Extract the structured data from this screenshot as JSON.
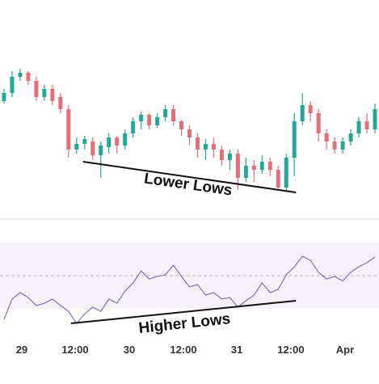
{
  "chart_data": [
    {
      "type": "candlestick",
      "up_color": "#26a69a",
      "down_color": "#e0707a",
      "xlim": [
        -0.5,
        46.5
      ],
      "ylim": [
        0,
        270
      ],
      "series": [
        {
          "open": [
            145,
            155,
            175,
            180,
            170,
            150,
            160,
            150,
            135,
            85,
            92,
            95,
            78,
            88,
            100,
            90,
            105,
            120,
            128,
            115,
            125,
            135,
            120,
            110,
            100,
            85,
            92,
            85,
            72,
            80,
            50,
            65,
            60,
            70,
            60,
            38,
            75,
            120,
            140,
            130,
            105,
            95,
            85,
            95,
            105,
            120,
            110
          ],
          "high": [
            160,
            182,
            185,
            182,
            175,
            165,
            165,
            155,
            140,
            100,
            102,
            100,
            95,
            105,
            102,
            110,
            125,
            132,
            130,
            130,
            140,
            140,
            122,
            115,
            105,
            98,
            100,
            90,
            85,
            85,
            75,
            72,
            78,
            75,
            65,
            80,
            130,
            155,
            145,
            135,
            110,
            100,
            100,
            110,
            125,
            130,
            142
          ],
          "low": [
            142,
            150,
            170,
            165,
            145,
            145,
            140,
            130,
            75,
            80,
            85,
            72,
            50,
            80,
            80,
            85,
            100,
            110,
            110,
            112,
            120,
            115,
            102,
            90,
            75,
            72,
            75,
            65,
            60,
            35,
            45,
            45,
            55,
            52,
            34,
            34,
            52,
            115,
            120,
            95,
            85,
            80,
            80,
            90,
            100,
            105,
            105
          ],
          "close": [
            155,
            175,
            180,
            170,
            150,
            160,
            145,
            135,
            85,
            92,
            98,
            78,
            90,
            100,
            90,
            105,
            120,
            128,
            115,
            125,
            135,
            120,
            110,
            100,
            85,
            92,
            85,
            72,
            80,
            50,
            65,
            60,
            70,
            60,
            38,
            75,
            120,
            140,
            130,
            105,
            95,
            85,
            95,
            105,
            120,
            110,
            135
          ]
        }
      ],
      "annotations": [
        {
          "text": "Lower Lows",
          "from": {
            "x": 9.8,
            "y": 70
          },
          "to": {
            "x": 36.2,
            "y": 32
          }
        }
      ]
    },
    {
      "type": "line",
      "color": "#7e72b5",
      "band": [
        30,
        70
      ],
      "band_color": "#f6f0fb",
      "midline": 50,
      "xlim": [
        -0.5,
        46.5
      ],
      "ylim": [
        0,
        100
      ],
      "xticks": [
        {
          "value": 2.2,
          "label": "29"
        },
        {
          "value": 8.82,
          "label": "12:00"
        },
        {
          "value": 15.53,
          "label": "30"
        },
        {
          "value": 22.25,
          "label": "12:00"
        },
        {
          "value": 28.86,
          "label": "31"
        },
        {
          "value": 35.57,
          "label": "12:00"
        },
        {
          "value": 42.29,
          "label": "Apr"
        }
      ],
      "values": [
        23.7,
        35.9,
        39.8,
        36.8,
        32,
        33.4,
        35.9,
        32,
        28.5,
        21.2,
        27,
        31,
        28.5,
        35.9,
        33.4,
        40.7,
        45.6,
        52.9,
        48,
        49.5,
        50.5,
        56.3,
        49.5,
        43.2,
        44.6,
        38.3,
        39.8,
        35.9,
        36.8,
        31,
        34.9,
        38.3,
        45.6,
        39.8,
        41.7,
        50.5,
        55.4,
        61.7,
        59.3,
        52,
        48,
        49.5,
        46.8,
        52,
        55.4,
        57.8,
        61.2
      ],
      "annotations": [
        {
          "text": "Higher Lows",
          "from": {
            "x": 8.3,
            "y": 21.2
          },
          "to": {
            "x": 36.2,
            "y": 34.9
          }
        }
      ]
    }
  ]
}
